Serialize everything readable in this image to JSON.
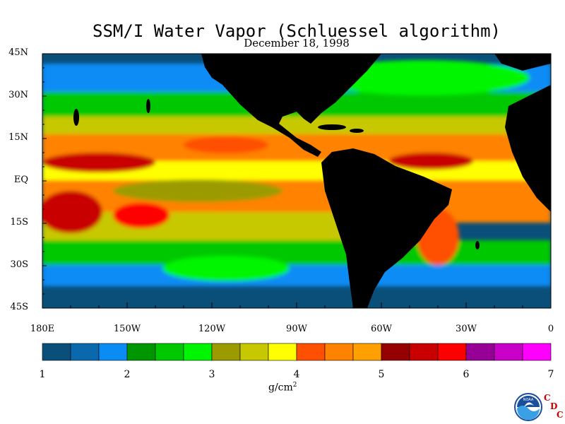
{
  "title": "SSM/I Water Vapor (Schluessel algorithm)",
  "subtitle": "December 18, 1998",
  "lat_labels": [
    "45N",
    "30N",
    "15N",
    "EQ",
    "15S",
    "30S",
    "45S"
  ],
  "lat_values": [
    45,
    30,
    15,
    0,
    -15,
    -30,
    -45
  ],
  "lon_labels": [
    "180E",
    "150W",
    "120W",
    "90W",
    "60W",
    "30W",
    "0"
  ],
  "lon_values": [
    -180,
    -150,
    -120,
    -90,
    -60,
    -30,
    0
  ],
  "colorbar": {
    "ticks": [
      "1",
      "2",
      "3",
      "4",
      "5",
      "6",
      "7"
    ],
    "units_base": "g/cm",
    "units_exp": "2",
    "colors": [
      "#0a4f7a",
      "#0a69ad",
      "#0a8cf5",
      "#009600",
      "#00c800",
      "#00f500",
      "#9b9b00",
      "#c8c800",
      "#ffff00",
      "#ff5000",
      "#ff8200",
      "#ffa000",
      "#960000",
      "#c80000",
      "#ff0000",
      "#960096",
      "#c800c8",
      "#ff00ff"
    ]
  },
  "colors": {
    "land": "#000000",
    "background": "#ffffff"
  },
  "logo": {
    "icon": "noaa-logo-icon",
    "text": "NOAA",
    "org_letters": [
      "C",
      "D",
      "C"
    ]
  }
}
